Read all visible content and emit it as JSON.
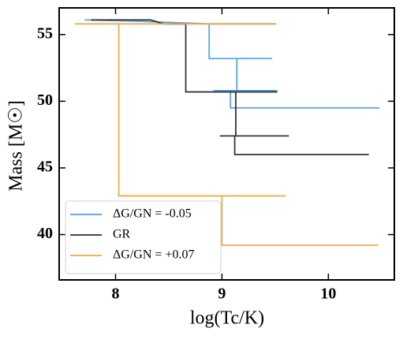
{
  "chart_data": {
    "type": "line",
    "xlabel": "log(Tc/K)",
    "ylabel": "Mass [M☉]",
    "xlim": [
      7.47,
      10.62
    ],
    "ylim": [
      36.6,
      57.0
    ],
    "xticks": [
      8,
      9,
      10
    ],
    "yticks": [
      40,
      45,
      50,
      55
    ],
    "legend": "lower left",
    "series": [
      {
        "name": "ΔG/GN = -0.05",
        "color": "#4ba3e8",
        "x": [
          7.71,
          8.2,
          8.88,
          9.51,
          8.88,
          8.88,
          9.47,
          9.14,
          9.14,
          8.92,
          9.52,
          9.08,
          9.08,
          10.48
        ],
        "values": [
          56.1,
          56.0,
          55.8,
          55.8,
          55.8,
          53.2,
          53.2,
          53.2,
          50.8,
          50.8,
          50.8,
          50.8,
          49.5,
          49.5
        ]
      },
      {
        "name": "GR",
        "color": "#2b2b2b",
        "x": [
          7.77,
          8.33,
          8.45,
          8.66,
          8.66,
          9.52,
          9.13,
          9.13,
          8.98,
          9.63,
          9.12,
          9.12,
          10.38
        ],
        "values": [
          56.1,
          56.1,
          55.8,
          55.8,
          50.7,
          50.7,
          50.7,
          47.4,
          47.4,
          47.4,
          47.4,
          46.0,
          46.0
        ]
      },
      {
        "name": "ΔG/GN = +0.07",
        "color": "#f7a540",
        "x": [
          7.62,
          9.51,
          8.03,
          8.03,
          9.6,
          9.0,
          9.0,
          10.47
        ],
        "values": [
          55.8,
          55.8,
          55.8,
          42.9,
          42.9,
          42.9,
          39.2,
          39.2
        ]
      }
    ]
  }
}
